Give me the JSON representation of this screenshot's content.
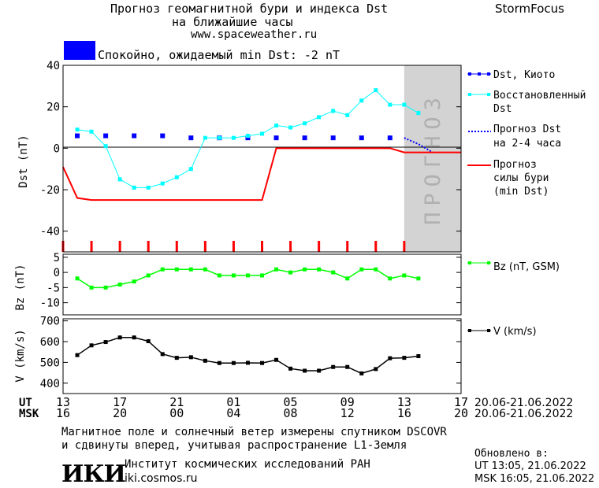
{
  "header": {
    "title_line1": "Прогноз геомагнитной бури и индекса Dst",
    "title_line2": "на ближайшие часы",
    "url": "www.spaceweather.ru",
    "brand": "StormFocus",
    "status_text": "Спокойно, ожидаемый min Dst: -2 nT",
    "status_color": "#0000ff"
  },
  "colors": {
    "kyoto": "#0000ff",
    "restored": "#00ffff",
    "forecast_dst": "#0000ff",
    "storm": "#ff0000",
    "bz": "#00ff00",
    "v": "#000000",
    "forecast_region": "#d3d3d3"
  },
  "legend": {
    "kyoto_line1": "Dst, Киото",
    "restored_line1": "Восстановленный",
    "restored_line2": "Dst",
    "forecast_line1": "Прогноз Dst",
    "forecast_line2": "на 2-4 часа",
    "storm_line1": "Прогноз",
    "storm_line2": "силы бури",
    "storm_line3": "(min Dst)",
    "bz": "Bz (nT, GSM)",
    "v": "V (km/s)"
  },
  "forecast_label": "ПРОГНОЗ",
  "time_axis": {
    "ut_label": "UT",
    "msk_label": "MSK",
    "ut_ticks": [
      "13",
      "17",
      "21",
      "01",
      "05",
      "09",
      "13",
      "17"
    ],
    "msk_ticks": [
      "16",
      "20",
      "00",
      "04",
      "08",
      "12",
      "16",
      "20"
    ],
    "ut_range": "20.06-21.06.2022",
    "msk_range": "20.06-21.06.2022"
  },
  "footer": {
    "note_line1": "Магнитное поле и солнечный ветер измерены спутником DSCOVR",
    "note_line2": "и сдвинуты вперед, учитывая распространение L1-Земля",
    "logo_text": "ИКИ",
    "institute": "Институт космических исследований РАН",
    "site": "iki.cosmos.ru",
    "updated_label": "Обновлено в:",
    "updated_ut": "UT   13:05, 21.06.2022",
    "updated_msk": "MSK 16:05, 21.06.2022"
  },
  "chart_data": [
    {
      "type": "line",
      "ylabel": "Dst (nT)",
      "ylim": [
        -50,
        40
      ],
      "yticks": [
        -40,
        -20,
        0,
        20,
        40
      ],
      "xlim": [
        13,
        41
      ],
      "forecast_start": 37,
      "series": [
        {
          "name": "Dst, Киото",
          "style": "squares",
          "x": [
            14,
            16,
            18,
            20,
            22,
            24,
            26,
            28,
            30,
            32,
            34,
            36
          ],
          "y": [
            6,
            6,
            6,
            6,
            5,
            5,
            5,
            5,
            5,
            5,
            5,
            5
          ]
        },
        {
          "name": "Восстановленный Dst",
          "style": "line-markers",
          "x": [
            14,
            15,
            16,
            17,
            18,
            19,
            20,
            21,
            22,
            23,
            24,
            25,
            26,
            27,
            28,
            29,
            30,
            31,
            32,
            33,
            34,
            35,
            36,
            37,
            38
          ],
          "y": [
            9,
            8,
            1,
            -15,
            -19,
            -19,
            -17,
            -14,
            -10,
            5,
            5,
            5,
            6,
            7,
            11,
            10,
            12,
            15,
            18,
            16,
            23,
            28,
            21,
            21,
            17
          ]
        },
        {
          "name": "Прогноз Dst на 2-4 часа",
          "style": "dotted",
          "x": [
            37,
            38,
            39
          ],
          "y": [
            5,
            2,
            -2
          ]
        },
        {
          "name": "Прогноз силы бури (min Dst)",
          "style": "step",
          "x": [
            13,
            14,
            15,
            27,
            28,
            36,
            37,
            41
          ],
          "y": [
            -9,
            -24,
            -25,
            -25,
            0,
            0,
            -2,
            -2
          ]
        }
      ]
    },
    {
      "type": "line",
      "ylabel": "Bz (nT)",
      "ylim": [
        -14,
        6
      ],
      "yticks": [
        -10,
        -5,
        0,
        5
      ],
      "xlim": [
        13,
        41
      ],
      "series": [
        {
          "name": "Bz (nT, GSM)",
          "x": [
            14,
            15,
            16,
            17,
            18,
            19,
            20,
            21,
            22,
            23,
            24,
            25,
            26,
            27,
            28,
            29,
            30,
            31,
            32,
            33,
            34,
            35,
            36,
            37,
            38
          ],
          "y": [
            -2,
            -5,
            -5,
            -4,
            -3,
            -1,
            1,
            1,
            1,
            1,
            -1,
            -1,
            -1,
            -1,
            1,
            0,
            1,
            1,
            0,
            -2,
            1,
            1,
            -2,
            -1,
            -2
          ]
        }
      ]
    },
    {
      "type": "line",
      "ylabel": "V (km/s)",
      "ylim": [
        350,
        710
      ],
      "yticks": [
        400,
        500,
        600,
        700
      ],
      "xlim": [
        13,
        41
      ],
      "series": [
        {
          "name": "V (km/s)",
          "x": [
            14,
            15,
            16,
            17,
            18,
            19,
            20,
            21,
            22,
            23,
            24,
            25,
            26,
            27,
            28,
            29,
            30,
            31,
            32,
            33,
            34,
            35,
            36,
            37,
            38
          ],
          "y": [
            535,
            582,
            598,
            620,
            620,
            602,
            540,
            522,
            525,
            508,
            497,
            497,
            498,
            497,
            512,
            470,
            460,
            460,
            478,
            478,
            447,
            468,
            520,
            522,
            530
          ]
        }
      ]
    }
  ]
}
